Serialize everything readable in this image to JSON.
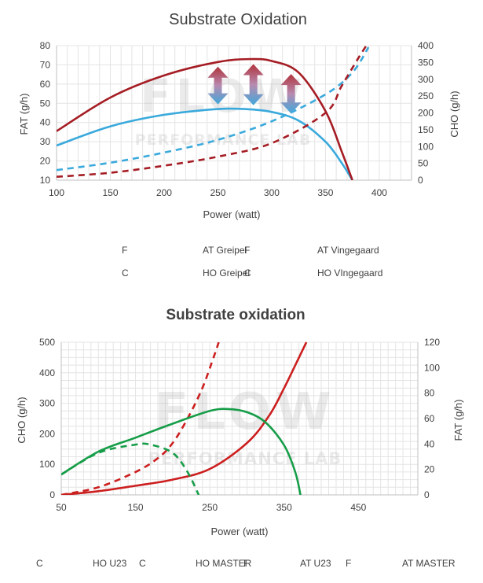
{
  "watermark": {
    "logo": "FLOW",
    "subtitle": "PERFORMANCE LAB"
  },
  "chart_data": [
    {
      "type": "line",
      "title": "Substrate Oxidation",
      "xlabel": "Power (watt)",
      "ylabel": "FAT (g/h)",
      "y2label": "CHO (g/h)",
      "xlim": [
        100,
        430
      ],
      "ylim": [
        10,
        80
      ],
      "y2lim": [
        0,
        400
      ],
      "xticks": [
        100,
        150,
        200,
        250,
        300,
        350,
        400
      ],
      "yticks": [
        10,
        20,
        30,
        40,
        50,
        60,
        70,
        80
      ],
      "y2ticks": [
        0,
        50,
        100,
        150,
        200,
        250,
        300,
        350,
        400
      ],
      "grid": true,
      "legend_position": "bottom",
      "colors": {
        "greipel": "#3aa9dc",
        "vingegaard": "#a51d24",
        "arrow_top": "#b0343c",
        "arrow_bottom": "#3fa8dc"
      },
      "series": [
        {
          "name": "FAT Greipel",
          "axis": "left",
          "dash": false,
          "color": "#3aa9dc",
          "x": [
            100,
            150,
            200,
            250,
            275,
            300,
            325,
            350,
            365,
            375
          ],
          "y": [
            28,
            38,
            44,
            47,
            47,
            45.5,
            41,
            30,
            19,
            10
          ]
        },
        {
          "name": "FAT Vingegaard",
          "axis": "left",
          "dash": false,
          "color": "#a51d24",
          "x": [
            100,
            150,
            200,
            250,
            280,
            300,
            325,
            350,
            365,
            375
          ],
          "y": [
            35.5,
            53,
            64.5,
            71.5,
            73,
            72,
            66,
            46,
            25,
            10
          ]
        },
        {
          "name": "CHO Greipel",
          "axis": "right",
          "dash": true,
          "color": "#3aa9dc",
          "x": [
            100,
            150,
            200,
            250,
            300,
            350,
            375,
            390
          ],
          "y": [
            30,
            52,
            82,
            120,
            175,
            255,
            320,
            395
          ]
        },
        {
          "name": "CHO VIngegaard",
          "axis": "right",
          "dash": true,
          "color": "#a51d24",
          "x": [
            100,
            150,
            200,
            250,
            300,
            350,
            365,
            380,
            390
          ],
          "y": [
            10,
            22,
            43,
            70,
            110,
            200,
            280,
            360,
            410
          ]
        }
      ],
      "arrows_x": [
        250,
        283,
        318
      ]
    },
    {
      "type": "line",
      "title": "Substrate oxidation",
      "xlabel": "Power (watt)",
      "ylabel": "CHO (g/h)",
      "y2label": "FAT (g/h)",
      "xlim": [
        50,
        530
      ],
      "ylim": [
        0,
        500
      ],
      "y2lim": [
        0,
        120
      ],
      "xticks": [
        50,
        150,
        250,
        350,
        450
      ],
      "yticks": [
        0,
        100,
        200,
        300,
        400,
        500
      ],
      "y2ticks": [
        0,
        20,
        40,
        60,
        80,
        100,
        120
      ],
      "grid": true,
      "legend_position": "bottom",
      "colors": {
        "red": "#cc1f1f",
        "green": "#169d48"
      },
      "series": [
        {
          "name": "CHO U23",
          "axis": "left",
          "dash": false,
          "color": "#cc1f1f",
          "x": [
            50,
            100,
            150,
            200,
            250,
            300,
            330,
            350,
            370,
            380
          ],
          "y": [
            0,
            12,
            30,
            50,
            85,
            170,
            260,
            350,
            450,
            500
          ]
        },
        {
          "name": "CHO MASTER",
          "axis": "left",
          "dash": true,
          "color": "#cc1f1f",
          "x": [
            50,
            100,
            150,
            180,
            200,
            220,
            240,
            255,
            262
          ],
          "y": [
            0,
            25,
            75,
            120,
            170,
            250,
            350,
            450,
            500
          ]
        },
        {
          "name": "FAT U23",
          "axis": "right",
          "dash": false,
          "color": "#169d48",
          "x": [
            50,
            100,
            150,
            200,
            250,
            275,
            300,
            325,
            350,
            365,
            372
          ],
          "y": [
            16,
            34,
            45,
            56,
            66,
            67.5,
            65,
            57,
            39,
            18,
            0
          ]
        },
        {
          "name": "FAT MASTER",
          "axis": "right",
          "dash": true,
          "color": "#169d48",
          "x": [
            50,
            100,
            150,
            170,
            200,
            220,
            235
          ],
          "y": [
            16,
            33,
            39.5,
            39.5,
            33,
            18,
            0
          ]
        }
      ]
    }
  ]
}
